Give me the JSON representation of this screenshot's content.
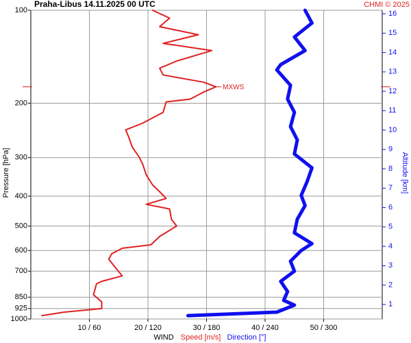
{
  "chart_data": {
    "type": "profile",
    "title": "Praha-Libus   14.11.2025 00 UTC",
    "credit": "CHMI © 2025",
    "ylabel": "Pressure [hPa]",
    "y2label": "Altitude [km]",
    "xlabel": "WIND",
    "log_y": true,
    "grid": true,
    "ylim": [
      1000,
      100
    ],
    "yticks": [
      100,
      200,
      300,
      400,
      500,
      600,
      700,
      850,
      925,
      1000
    ],
    "y2lim": [
      0.25,
      16.18
    ],
    "y2ticks": [
      1,
      2,
      3,
      4,
      5,
      6,
      7,
      8,
      9,
      10,
      11,
      12,
      13,
      14,
      15,
      16
    ],
    "xlim": [
      0,
      60
    ],
    "x2lim": [
      0,
      360
    ],
    "xticks": [
      {
        "value": 10,
        "label": "10 / 60"
      },
      {
        "value": 20,
        "label": "20 / 120"
      },
      {
        "value": 30,
        "label": "30 / 180"
      },
      {
        "value": 40,
        "label": "40 / 240"
      },
      {
        "value": 50,
        "label": "50 / 300"
      }
    ],
    "mxws": {
      "label": "MXWS",
      "pressure": 177,
      "speed": 31.6,
      "color": "#e02020"
    },
    "series": [
      {
        "name": "Speed [m/s]",
        "color": "#e02020",
        "axis": "x",
        "pressure": [
          975,
          950,
          925,
          880,
          835,
          770,
          755,
          725,
          680,
          640,
          615,
          590,
          575,
          540,
          500,
          475,
          440,
          425,
          407,
          387,
          368,
          341,
          315,
          299,
          277,
          257,
          244,
          232,
          214,
          198,
          194,
          184,
          177,
          171,
          162,
          154,
          146,
          135,
          128,
          120,
          113,
          106,
          100
        ],
        "values": [
          1.9,
          5.7,
          12.1,
          12.1,
          10.7,
          11.2,
          12.1,
          15.6,
          14.4,
          13.3,
          13.8,
          15.6,
          20.5,
          22.0,
          24.9,
          24.0,
          23.7,
          19.7,
          23.1,
          22.0,
          20.8,
          19.7,
          19.1,
          18.5,
          17.3,
          16.7,
          16.2,
          19.1,
          22.6,
          23.1,
          27.2,
          29.5,
          31.6,
          29.5,
          22.6,
          22.0,
          24.9,
          30.9,
          22.6,
          28.6,
          22.0,
          23.7,
          20.8
        ]
      },
      {
        "name": "Direction [°]",
        "color": "#1010ee",
        "axis": "x2",
        "pressure": [
          975,
          950,
          902,
          870,
          815,
          755,
          700,
          650,
          600,
          570,
          526,
          475,
          429,
          398,
          359,
          324,
          292,
          263,
          238,
          214,
          194,
          175,
          156,
          150,
          135,
          122,
          110,
          100
        ],
        "values": [
          161,
          252,
          270,
          259,
          263,
          256,
          270,
          266,
          277,
          288,
          270,
          273,
          281,
          277,
          283,
          288,
          270,
          273,
          266,
          270,
          263,
          266,
          252,
          256,
          281,
          270,
          288,
          281
        ]
      }
    ]
  }
}
